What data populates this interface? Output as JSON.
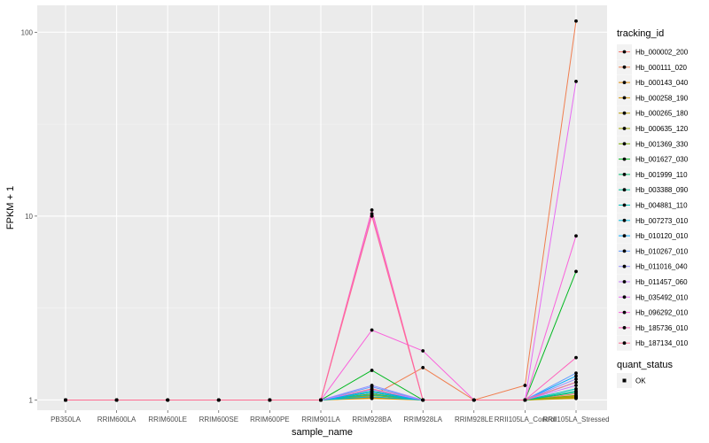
{
  "chart_data": {
    "type": "line",
    "xlabel": "sample_name",
    "ylabel": "FPKM + 1",
    "yscale": "log10",
    "ylim": [
      0.88,
      140
    ],
    "y_ticks": [
      1,
      10,
      100
    ],
    "y_tick_labels": [
      "1",
      "10",
      "100"
    ],
    "grid": true,
    "legend_position": "right",
    "categories": [
      "PB350LA",
      "RRIM600LA",
      "RRIM600LE",
      "RRIM600SE",
      "RRIM600PE",
      "RRIM901LA",
      "RRIM928BA",
      "RRIM928LA",
      "RRIM928LE",
      "RRII105LA_Control",
      "RRII105LA_Stressed"
    ],
    "series": [
      {
        "name": "Hb_000002_200",
        "color": "#F8766D",
        "values": [
          1,
          1,
          1,
          1,
          1,
          1,
          1.15,
          1.0,
          1,
          1,
          1.08
        ]
      },
      {
        "name": "Hb_000111_020",
        "color": "#F07E4F",
        "values": [
          1,
          1,
          1,
          1,
          1,
          1,
          1.05,
          1.5,
          1,
          1.2,
          115
        ]
      },
      {
        "name": "Hb_000143_040",
        "color": "#E38900",
        "values": [
          1,
          1,
          1,
          1,
          1,
          1,
          1.03,
          1.0,
          1,
          1,
          1.05
        ]
      },
      {
        "name": "Hb_000258_190",
        "color": "#D29300",
        "values": [
          1,
          1,
          1,
          1,
          1,
          1,
          1.02,
          1.0,
          1,
          1,
          1.03
        ]
      },
      {
        "name": "Hb_000265_180",
        "color": "#BB9D00",
        "values": [
          1,
          1,
          1,
          1,
          1,
          1,
          1.04,
          1.0,
          1,
          1,
          1.02
        ]
      },
      {
        "name": "Hb_000635_120",
        "color": "#9FA600",
        "values": [
          1,
          1,
          1,
          1,
          1,
          1,
          1.06,
          1.0,
          1,
          1,
          1.04
        ]
      },
      {
        "name": "Hb_001369_330",
        "color": "#7CAE00",
        "values": [
          1,
          1,
          1,
          1,
          1,
          1,
          1.08,
          1.0,
          1,
          1,
          1.06
        ]
      },
      {
        "name": "Hb_001627_030",
        "color": "#00B81F",
        "values": [
          1,
          1,
          1,
          1,
          1,
          1,
          1.45,
          1.0,
          1,
          1,
          5.0
        ]
      },
      {
        "name": "Hb_001999_110",
        "color": "#00BE6C",
        "values": [
          1,
          1,
          1,
          1,
          1,
          1,
          1.1,
          1.0,
          1,
          1,
          1.1
        ]
      },
      {
        "name": "Hb_003388_090",
        "color": "#00C19C",
        "values": [
          1,
          1,
          1,
          1,
          1,
          1,
          1.12,
          1.0,
          1,
          1,
          1.12
        ]
      },
      {
        "name": "Hb_004881_110",
        "color": "#00C0B8",
        "values": [
          1,
          1,
          1,
          1,
          1,
          1,
          1.07,
          1.0,
          1,
          1,
          1.15
        ]
      },
      {
        "name": "Hb_007273_010",
        "color": "#00BAE0",
        "values": [
          1,
          1,
          1,
          1,
          1,
          1,
          1.04,
          1.0,
          1,
          1,
          1.25
        ]
      },
      {
        "name": "Hb_010120_010",
        "color": "#00A9FF",
        "values": [
          1,
          1,
          1,
          1,
          1,
          1,
          1.1,
          1.0,
          1,
          1,
          1.35
        ]
      },
      {
        "name": "Hb_010267_010",
        "color": "#619CFF",
        "values": [
          1,
          1,
          1,
          1,
          1,
          1,
          1.18,
          1.0,
          1,
          1,
          1.4
        ]
      },
      {
        "name": "Hb_011016_040",
        "color": "#9590FF",
        "values": [
          1,
          1,
          1,
          1,
          1,
          1,
          1.2,
          1.0,
          1,
          1,
          1.3
        ]
      },
      {
        "name": "Hb_011457_060",
        "color": "#C77CFF",
        "values": [
          1,
          1,
          1,
          1,
          1,
          1,
          1.14,
          1.0,
          1,
          1,
          1.2
        ]
      },
      {
        "name": "Hb_035492_010",
        "color": "#E76BF3",
        "values": [
          1,
          1,
          1,
          1,
          1,
          1,
          10.3,
          1.0,
          1,
          1,
          54
        ]
      },
      {
        "name": "Hb_096292_010",
        "color": "#FA62DB",
        "values": [
          1,
          1,
          1,
          1,
          1,
          1,
          2.4,
          1.85,
          1,
          1,
          7.8
        ]
      },
      {
        "name": "Hb_185736_010",
        "color": "#FF62BC",
        "values": [
          1,
          1,
          1,
          1,
          1,
          1,
          10.8,
          1.0,
          1,
          1,
          1.7
        ]
      },
      {
        "name": "Hb_187134_010",
        "color": "#FF6C91",
        "values": [
          1,
          1,
          1,
          1,
          1,
          1,
          10.0,
          1.0,
          1,
          1,
          1.25
        ]
      }
    ],
    "legend": {
      "color_title": "tracking_id",
      "shape_title": "quant_status",
      "shape_items": [
        "OK"
      ]
    }
  }
}
